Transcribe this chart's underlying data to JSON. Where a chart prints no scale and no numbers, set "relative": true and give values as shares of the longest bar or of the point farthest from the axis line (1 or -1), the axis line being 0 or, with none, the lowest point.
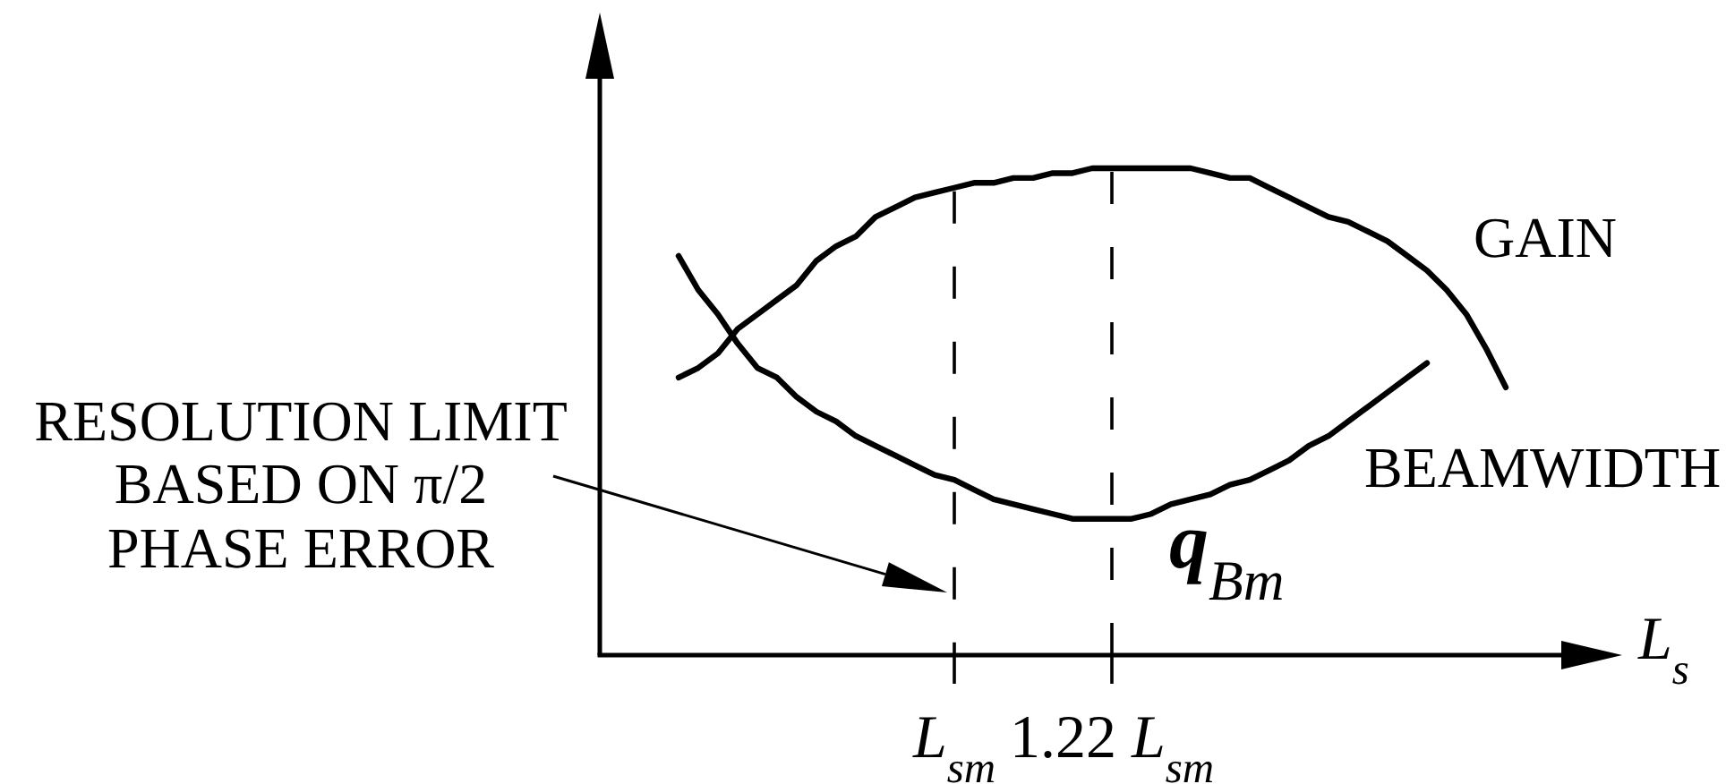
{
  "chart_data": {
    "type": "line",
    "relative": true,
    "xlabel": "L$_{s}$",
    "categories": [
      null,
      null,
      null,
      null,
      null,
      null,
      null,
      null,
      null,
      null,
      null,
      null,
      null,
      null,
      "L$_{sm}$",
      null,
      null,
      null,
      null,
      null,
      null,
      null,
      "1.22 L$_{sm}$",
      null,
      null,
      null,
      null,
      null,
      null,
      null,
      null,
      null,
      null,
      null,
      null,
      null,
      null,
      null,
      null,
      null,
      null,
      null,
      null
    ],
    "series": [
      {
        "name": "GAIN",
        "color": "#000000",
        "values": [
          0.57,
          0.59,
          0.62,
          0.67,
          0.7,
          0.73,
          0.76,
          0.81,
          0.84,
          0.86,
          0.9,
          0.92,
          0.94,
          0.95,
          0.96,
          0.97,
          0.97,
          0.98,
          0.98,
          0.99,
          0.99,
          1,
          1,
          1,
          1,
          1,
          1,
          0.99,
          0.98,
          0.98,
          0.96,
          0.94,
          0.92,
          0.9,
          0.89,
          0.87,
          0.85,
          0.82,
          0.79,
          0.75,
          0.7,
          0.63,
          0.55
        ]
      },
      {
        "name": "BEAMWIDTH",
        "color": "#000000",
        "values": [
          0.82,
          0.75,
          0.7,
          0.64,
          0.59,
          0.57,
          0.53,
          0.5,
          0.48,
          0.45,
          0.43,
          0.41,
          0.39,
          0.37,
          0.36,
          0.34,
          0.32,
          0.31,
          0.3,
          0.29,
          0.28,
          0.28,
          0.28,
          0.28,
          0.29,
          0.31,
          0.32,
          0.33,
          0.35,
          0.36,
          0.38,
          0.4,
          0.43,
          0.45,
          0.48,
          0.51,
          0.54,
          0.57,
          0.6,
          null,
          null,
          null,
          null
        ]
      }
    ],
    "ref_lines": [
      {
        "axis": "x",
        "value": "L$_{sm}$",
        "line_style": "dashed"
      },
      {
        "axis": "x",
        "value": "1.22 L$_{sm}$",
        "line_style": "dashed"
      }
    ],
    "annotations": [
      "RESOLUTION LIMIT\nBASED ON π/2\nPHASE ERROR",
      {
        "text": "q$_{Bm}$",
        "x": "1.22 L$_{sm}$",
        "y": 0.28
      }
    ]
  }
}
